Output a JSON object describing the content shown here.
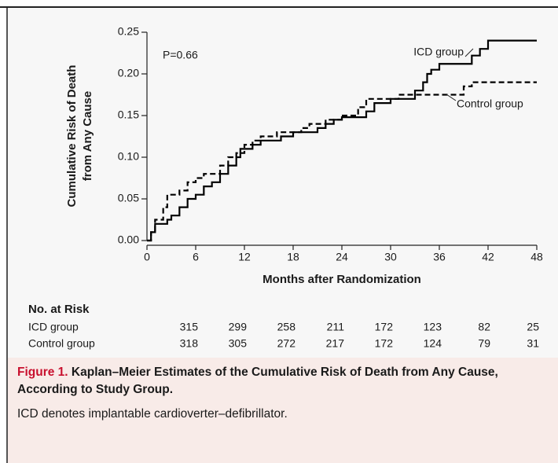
{
  "chart_data": {
    "type": "line",
    "step": true,
    "ylabel": [
      "Cumulative Risk of Death",
      "from Any Cause"
    ],
    "xlabel": "Months after Randomization",
    "annotation": "P=0.66",
    "xlim": [
      0,
      48
    ],
    "xticks": [
      0,
      6,
      12,
      18,
      24,
      30,
      36,
      42,
      48
    ],
    "ylim": [
      0,
      0.25
    ],
    "yticks": [
      {
        "value": 0,
        "label": "0.00"
      },
      {
        "value": 0.05,
        "label": "0.05"
      },
      {
        "value": 0.1,
        "label": "0.10"
      },
      {
        "value": 0.15,
        "label": "0.15"
      },
      {
        "value": 0.2,
        "label": "0.20"
      },
      {
        "value": 0.25,
        "label": "0.25"
      }
    ],
    "series": [
      {
        "name": "ICD group",
        "color": "#000000",
        "dashed": false,
        "x": [
          0,
          0.5,
          1,
          2.5,
          3,
          4,
          5,
          6,
          7,
          8,
          9,
          10,
          11,
          11.5,
          13,
          14,
          16.5,
          18,
          21,
          22,
          23,
          24,
          27,
          28,
          30,
          33,
          34,
          34.5,
          35,
          36,
          40,
          41,
          42,
          48
        ],
        "values": [
          0,
          0.01,
          0.02,
          0.025,
          0.03,
          0.04,
          0.05,
          0.055,
          0.065,
          0.07,
          0.08,
          0.09,
          0.1,
          0.11,
          0.115,
          0.12,
          0.125,
          0.13,
          0.135,
          0.14,
          0.145,
          0.148,
          0.155,
          0.165,
          0.17,
          0.18,
          0.19,
          0.2,
          0.205,
          0.212,
          0.222,
          0.23,
          0.24,
          0.24
        ]
      },
      {
        "name": "Control group",
        "color": "#000000",
        "dashed": true,
        "x": [
          0,
          0.5,
          1,
          2,
          2.5,
          4,
          5,
          6,
          7,
          9,
          10,
          11,
          12,
          13,
          14,
          16,
          19,
          20,
          22,
          24,
          26,
          27,
          31,
          39,
          40,
          48
        ],
        "values": [
          0,
          0.01,
          0.025,
          0.04,
          0.055,
          0.06,
          0.07,
          0.075,
          0.08,
          0.09,
          0.1,
          0.105,
          0.115,
          0.12,
          0.125,
          0.13,
          0.135,
          0.14,
          0.145,
          0.15,
          0.16,
          0.17,
          0.175,
          0.185,
          0.19,
          0.19
        ]
      }
    ]
  },
  "risk_table": {
    "title": "No. at Risk",
    "rows": [
      {
        "label": "ICD group",
        "counts": [
          315,
          299,
          258,
          211,
          172,
          123,
          82,
          25
        ]
      },
      {
        "label": "Control group",
        "counts": [
          318,
          305,
          272,
          217,
          172,
          124,
          79,
          31
        ]
      }
    ]
  },
  "caption": {
    "figure": "Figure 1.",
    "title": "Kaplan–Meier Estimates of the Cumulative Risk of Death from Any Cause, According to Study Group.",
    "note": "ICD denotes implantable cardioverter–defibrillator."
  }
}
